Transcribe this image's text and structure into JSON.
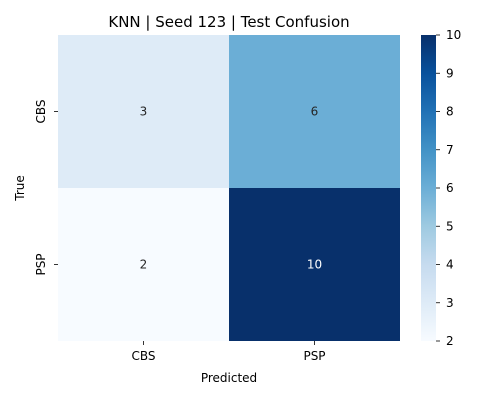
{
  "chart_data": {
    "type": "heatmap",
    "title": "KNN | Seed 123 | Test Confusion",
    "xlabel": "Predicted",
    "ylabel": "True",
    "x_categories": [
      "CBS",
      "PSP"
    ],
    "y_categories": [
      "CBS",
      "PSP"
    ],
    "values": [
      [
        3,
        6
      ],
      [
        2,
        10
      ]
    ],
    "colorbar": {
      "min": 2,
      "max": 10,
      "ticks": [
        2,
        3,
        4,
        5,
        6,
        7,
        8,
        9,
        10
      ],
      "colormap": "Blues"
    },
    "grid": false
  }
}
